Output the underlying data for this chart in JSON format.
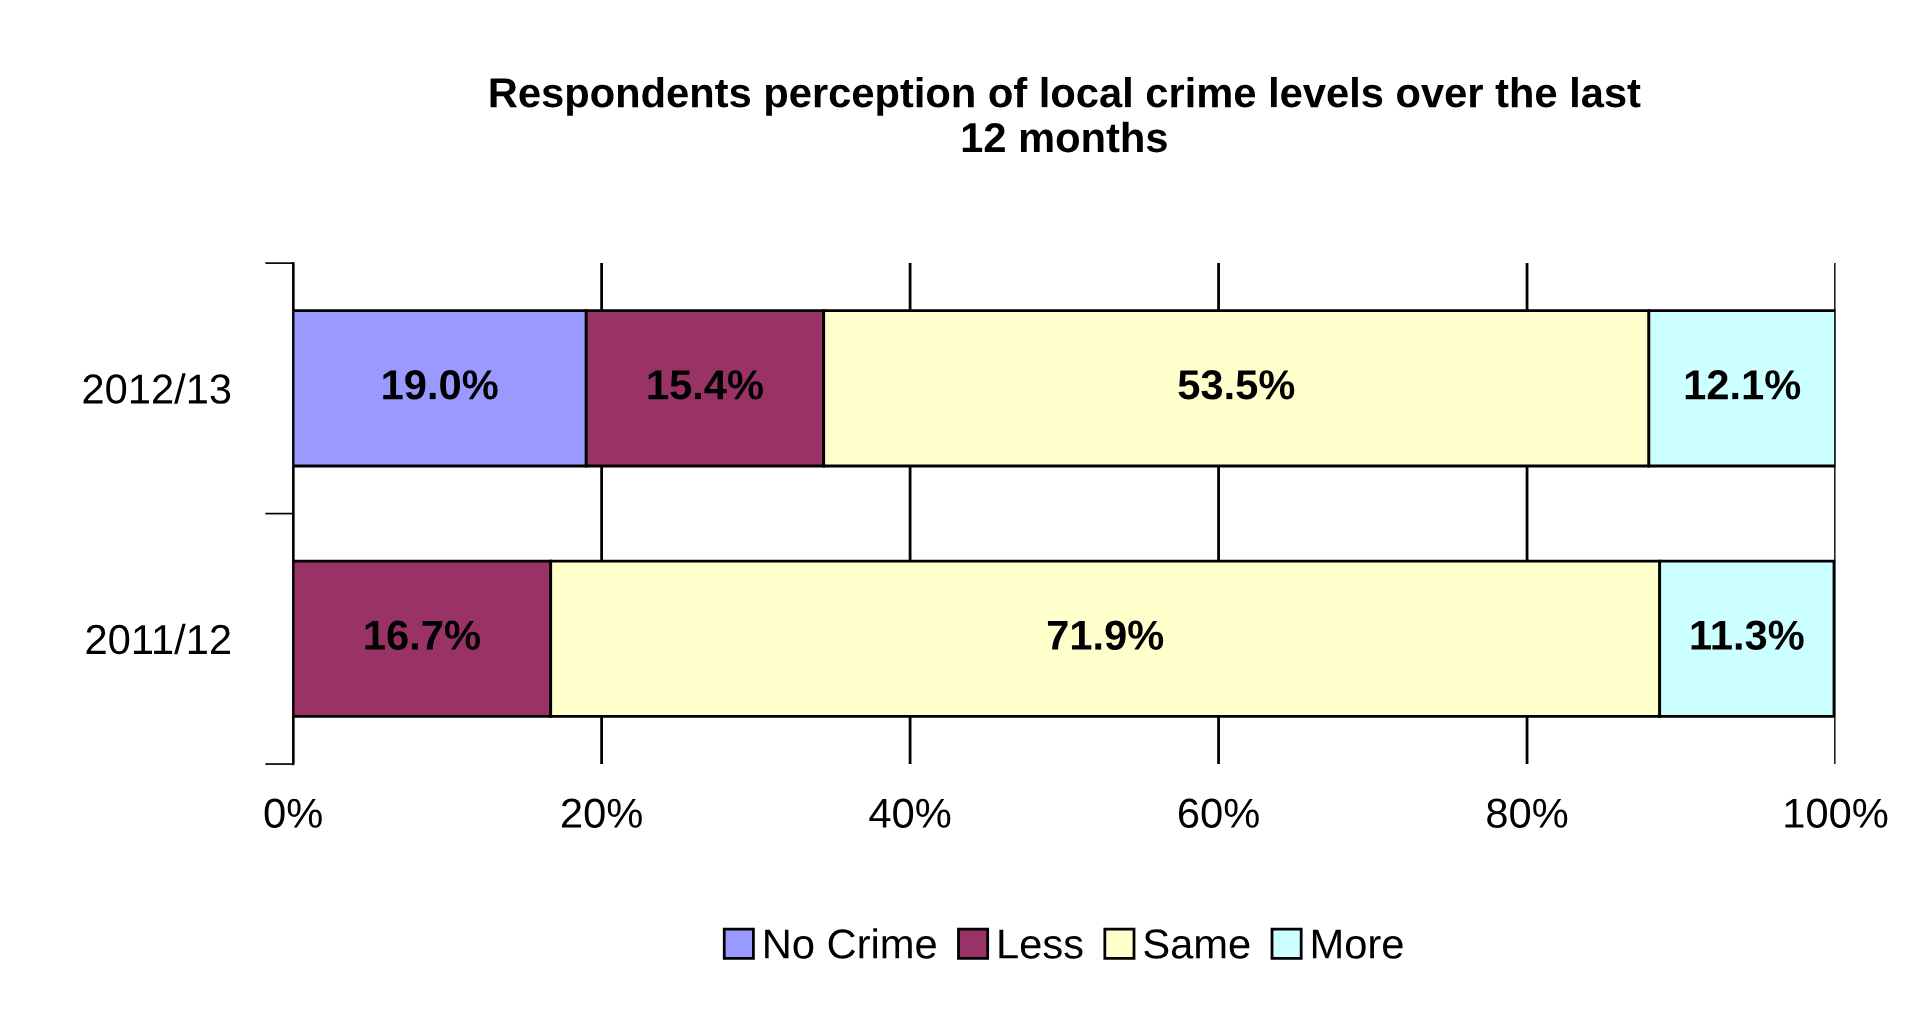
{
  "chart_data": {
    "type": "bar",
    "orientation": "horizontal",
    "stacked": true,
    "title": "Respondents perception of local crime levels over the last\n12 months",
    "categories": [
      "2012/13",
      "2011/12"
    ],
    "series": [
      {
        "name": "No Crime",
        "color": "#9999ff",
        "values": [
          19.0,
          null
        ],
        "value_labels": [
          "19.0%",
          null
        ]
      },
      {
        "name": "Less",
        "color": "#993366",
        "values": [
          15.4,
          16.7
        ],
        "value_labels": [
          "15.4%",
          "16.7%"
        ]
      },
      {
        "name": "Same",
        "color": "#ffffcc",
        "values": [
          53.5,
          71.9
        ],
        "value_labels": [
          "53.5%",
          "71.9%"
        ]
      },
      {
        "name": "More",
        "color": "#ccffff",
        "values": [
          12.1,
          11.3
        ],
        "value_labels": [
          "12.1%",
          "11.3%"
        ]
      }
    ],
    "xlim": [
      0,
      100
    ],
    "xticks": [
      {
        "value": 0,
        "label": "0%"
      },
      {
        "value": 20,
        "label": "20%"
      },
      {
        "value": 40,
        "label": "40%"
      },
      {
        "value": 60,
        "label": "60%"
      },
      {
        "value": 80,
        "label": "80%"
      },
      {
        "value": 100,
        "label": "100%"
      }
    ],
    "grid": "x",
    "legend": "bottom"
  }
}
